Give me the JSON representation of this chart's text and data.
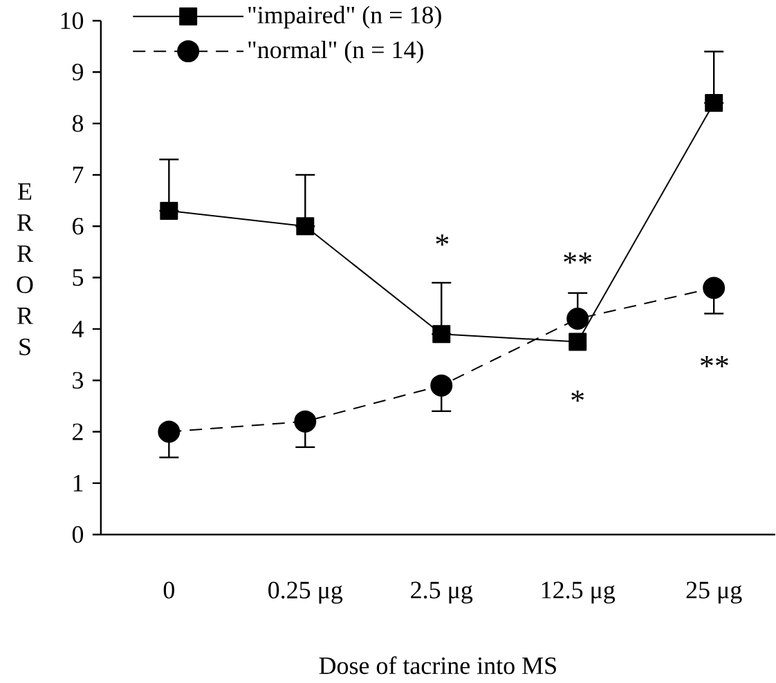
{
  "chart_data": {
    "type": "line",
    "xlabel": "Dose of tacrine into MS",
    "ylabel": "ERRORS",
    "categories": [
      "0",
      "0.25 μg",
      "2.5 μg",
      "12.5 μg",
      "25 μg"
    ],
    "ylim": [
      0,
      10
    ],
    "yticks": [
      0,
      1,
      2,
      3,
      4,
      5,
      6,
      7,
      8,
      9,
      10
    ],
    "legend": "top",
    "grid": false,
    "series": [
      {
        "name": "\"impaired\" (n = 18)",
        "color": "#000000",
        "marker": "square",
        "line_style": "solid",
        "values": [
          6.3,
          6.0,
          3.9,
          3.75,
          8.4
        ],
        "errors": [
          [
            6.3,
            7.3
          ],
          [
            6.0,
            7.0
          ],
          [
            3.9,
            4.9
          ],
          null,
          [
            8.4,
            9.4
          ]
        ]
      },
      {
        "name": "\"normal\" (n = 14)",
        "color": "#000000",
        "marker": "circle",
        "line_style": "dashed",
        "values": [
          2.0,
          2.2,
          2.9,
          4.2,
          4.8
        ],
        "errors": [
          [
            1.5,
            2.0
          ],
          [
            1.7,
            2.2
          ],
          [
            2.4,
            2.9
          ],
          [
            4.2,
            4.7
          ],
          [
            4.3,
            4.8
          ]
        ]
      }
    ],
    "annotations": [
      "*",
      "**",
      "*",
      "**"
    ]
  }
}
